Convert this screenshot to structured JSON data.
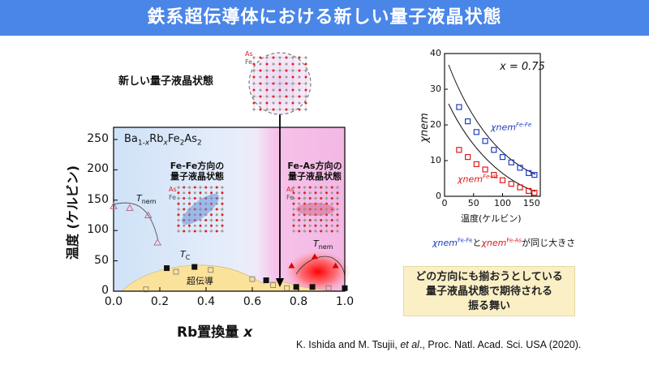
{
  "title": "鉄系超伝導体における新しい量子液晶状態",
  "main_plot": {
    "xlabel_prefix": "Rb置換量",
    "xlabel_var": "x",
    "ylabel": "温度 (ケルビン)",
    "x_ticks": [
      "0.0",
      "0.2",
      "0.4",
      "0.6",
      "0.8",
      "1.0"
    ],
    "y_ticks": [
      "0",
      "50",
      "100",
      "150",
      "200",
      "250"
    ],
    "compound": "Ba1-xRbxFe2As2",
    "tnem_label": "T",
    "tnem_sub": "nem",
    "tc_label": "T",
    "tc_sub": "C",
    "superconduct": "超伝導",
    "fefe_label_1": "Fe-Fe方向の",
    "fefe_label_2": "量子液晶状態",
    "feas_label_1": "Fe-As方向の",
    "feas_label_2": "量子液晶状態",
    "as_label": "As",
    "fe_label": "Fe",
    "new_state_label": "新しい量子液晶状態",
    "colors": {
      "blue": "#cfe2f8",
      "pink": "#f6c2ea",
      "dome": "#fbe29a",
      "tnem_marker": "#c06a8a",
      "tc_marker": "#111111",
      "red_marker": "#e00000"
    }
  },
  "chart_data": [
    {
      "type": "scatter",
      "title": "",
      "xlabel": "x",
      "ylabel": "温度 (ケルビン)",
      "xlim": [
        0,
        1.0
      ],
      "ylim": [
        0,
        270
      ],
      "series": [
        {
          "name": "Tnem",
          "x": [
            0.0,
            0.07,
            0.15,
            0.19
          ],
          "y": [
            140,
            137,
            125,
            80
          ]
        },
        {
          "name": "Tc",
          "x": [
            0.23,
            0.35,
            0.66,
            0.79,
            0.86,
            1.0
          ],
          "y": [
            38,
            40,
            18,
            7,
            7,
            5
          ]
        },
        {
          "name": "Tnem",
          "x": [
            0.77,
            0.87,
            0.96
          ],
          "y": [
            42,
            57,
            42
          ]
        }
      ]
    },
    {
      "type": "scatter",
      "title": "x = 0.75",
      "xlabel": "温度(ケルビン)",
      "ylabel": "χnem",
      "xlim": [
        0,
        165
      ],
      "ylim": [
        0,
        40
      ],
      "series": [
        {
          "name": "χnem Fe-Fe",
          "x": [
            25,
            40,
            55,
            70,
            85,
            100,
            115,
            130,
            145,
            155
          ],
          "y": [
            25,
            21,
            18,
            15.5,
            13,
            11,
            9.5,
            8,
            6.5,
            6
          ]
        },
        {
          "name": "χnem Fe-As",
          "x": [
            25,
            40,
            55,
            70,
            85,
            100,
            115,
            130,
            145,
            155
          ],
          "y": [
            13,
            11,
            9,
            7.5,
            6,
            4.5,
            3.5,
            2.5,
            1.5,
            1
          ]
        }
      ]
    }
  ],
  "inset": {
    "x_label": "x = 0.75",
    "x_ticks": [
      "0",
      "50",
      "100",
      "150"
    ],
    "y_ticks": [
      "0",
      "10",
      "20",
      "30",
      "40"
    ],
    "xlabel": "温度(ケルビン)",
    "ylabel": "χnem",
    "fefe_label": "χnem",
    "fefe_sup": "Fe-Fe",
    "feas_label": "χnem",
    "feas_sup": "Fe-As"
  },
  "equal_note": {
    "sym1": "χnem",
    "sup1": "Fe-Fe",
    "connector": "と",
    "sym2": "χnem",
    "sup2": "Fe-As",
    "suffix": "が同じ大きさ"
  },
  "callout": {
    "line1": "どの方向にも揃おうとしている",
    "line2": "量子液晶状態で期待される",
    "line3": "振る舞い"
  },
  "caption": {
    "pre": "K. Ishida and M. Tsujii, ",
    "etal": "et al",
    "post": "., Proc. Natl. Acad. Sci. USA (2020)."
  }
}
